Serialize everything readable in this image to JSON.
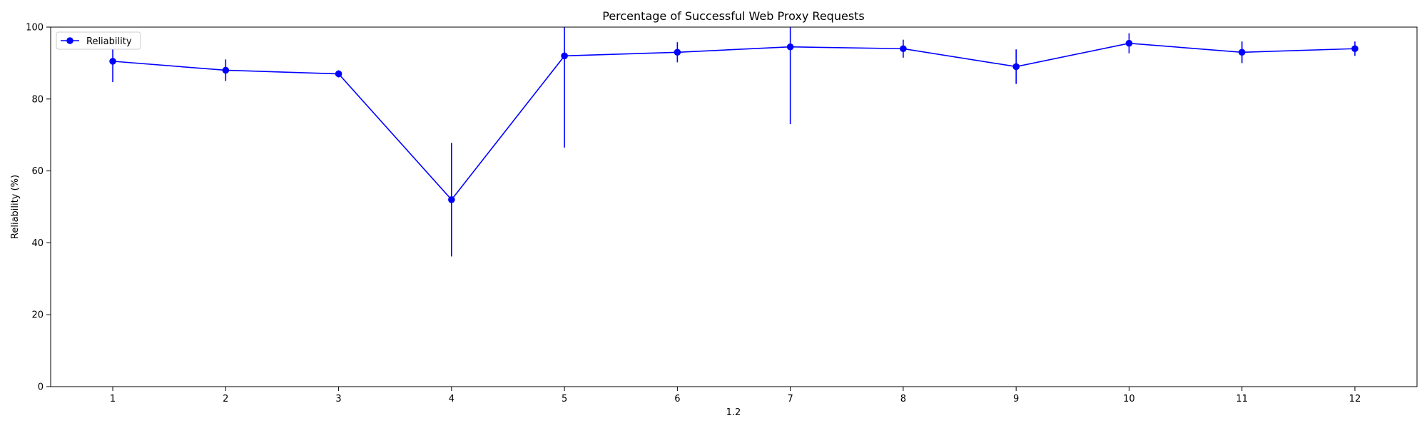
{
  "chart_data": {
    "type": "line",
    "title": "Percentage of Successful Web Proxy Requests",
    "xlabel": "1.2",
    "ylabel": "Reliability (%)",
    "x": [
      1,
      2,
      3,
      4,
      5,
      6,
      7,
      8,
      9,
      10,
      11,
      12
    ],
    "xlim": [
      0.45,
      12.55
    ],
    "ylim": [
      0,
      100
    ],
    "yticks": [
      0,
      20,
      40,
      60,
      80,
      100
    ],
    "grid": false,
    "legend_position": "top-left",
    "series": [
      {
        "name": "Reliability",
        "color": "#0000ff",
        "marker": "circle",
        "values": [
          90.5,
          88.0,
          87.0,
          52.0,
          92.0,
          93.0,
          94.5,
          94.0,
          89.0,
          95.5,
          93.0,
          94.0
        ],
        "error": [
          5.8,
          3.0,
          1.0,
          15.8,
          25.5,
          2.8,
          21.5,
          2.5,
          4.8,
          2.8,
          3.0,
          2.0
        ]
      }
    ]
  }
}
